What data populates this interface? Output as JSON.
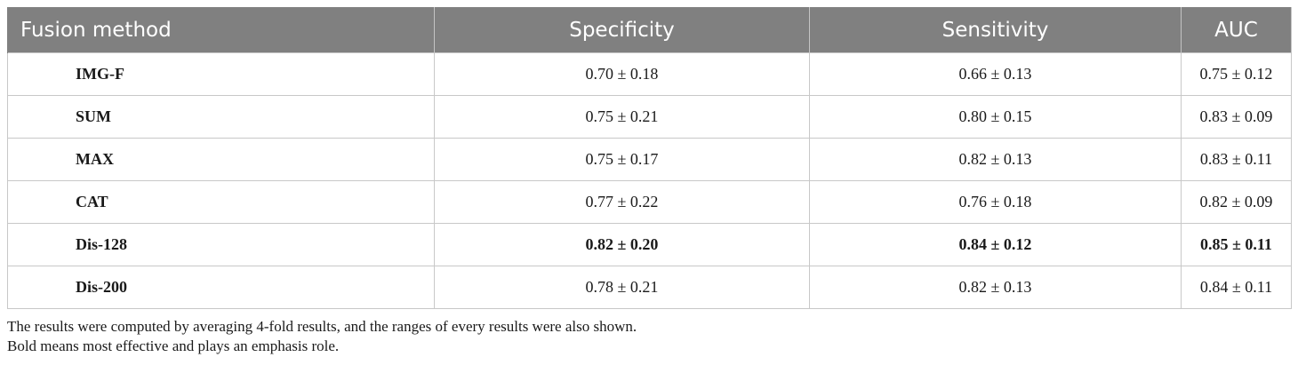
{
  "table": {
    "headers": [
      "Fusion method",
      "Specificity",
      "Sensitivity",
      "AUC"
    ],
    "rows": [
      {
        "method": "IMG-F",
        "specificity": "0.70 ± 0.18",
        "sensitivity": "0.66 ± 0.13",
        "auc": "0.75 ± 0.12",
        "bold": false
      },
      {
        "method": "SUM",
        "specificity": "0.75 ± 0.21",
        "sensitivity": "0.80 ± 0.15",
        "auc": "0.83 ± 0.09",
        "bold": false
      },
      {
        "method": "MAX",
        "specificity": "0.75 ± 0.17",
        "sensitivity": "0.82 ± 0.13",
        "auc": "0.83 ± 0.11",
        "bold": false
      },
      {
        "method": "CAT",
        "specificity": "0.77 ± 0.22",
        "sensitivity": "0.76 ± 0.18",
        "auc": "0.82 ± 0.09",
        "bold": false
      },
      {
        "method": "Dis-128",
        "specificity": "0.82 ± 0.20",
        "sensitivity": "0.84 ± 0.12",
        "auc": "0.85 ± 0.11",
        "bold": true
      },
      {
        "method": "Dis-200",
        "specificity": "0.78 ± 0.21",
        "sensitivity": "0.82 ± 0.13",
        "auc": "0.84 ± 0.11",
        "bold": false
      }
    ]
  },
  "notes": {
    "line1": "The results were computed by averaging 4-fold results, and the ranges of every results were also shown.",
    "line2": "Bold means most effective and plays an emphasis role."
  },
  "colors": {
    "header_bg": "#808080",
    "header_text": "#ffffff",
    "border": "#c8c8c8"
  }
}
